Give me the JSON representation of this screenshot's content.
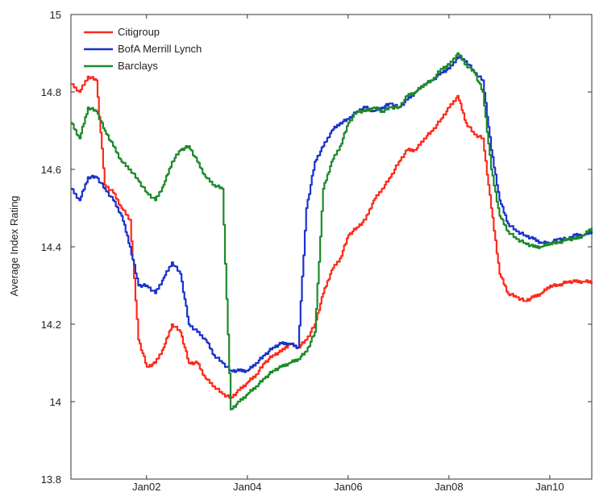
{
  "chart_data": {
    "type": "line",
    "title": "",
    "xlabel": "",
    "ylabel": "Average Index Rating",
    "xlim": [
      "2000-07",
      "2010-11"
    ],
    "ylim": [
      13.8,
      15
    ],
    "x_ticks": [
      {
        "label": "Jan02",
        "date": "2002-01"
      },
      {
        "label": "Jan04",
        "date": "2004-01"
      },
      {
        "label": "Jan06",
        "date": "2006-01"
      },
      {
        "label": "Jan08",
        "date": "2008-01"
      },
      {
        "label": "Jan10",
        "date": "2010-01"
      }
    ],
    "y_ticks": [
      "13.8",
      "14",
      "14.2",
      "14.4",
      "14.6",
      "14.8",
      "15"
    ],
    "grid": false,
    "legend_position": "top-left",
    "x": [
      "2000-07",
      "2000-09",
      "2000-11",
      "2001-01",
      "2001-03",
      "2001-05",
      "2001-07",
      "2001-09",
      "2001-11",
      "2002-01",
      "2002-03",
      "2002-05",
      "2002-07",
      "2002-09",
      "2002-11",
      "2003-01",
      "2003-03",
      "2003-05",
      "2003-07",
      "2003-09",
      "2003-11",
      "2004-01",
      "2004-03",
      "2004-05",
      "2004-07",
      "2004-09",
      "2004-11",
      "2005-01",
      "2005-03",
      "2005-05",
      "2005-07",
      "2005-09",
      "2005-11",
      "2006-01",
      "2006-03",
      "2006-05",
      "2006-07",
      "2006-09",
      "2006-11",
      "2007-01",
      "2007-03",
      "2007-05",
      "2007-07",
      "2007-09",
      "2007-11",
      "2008-01",
      "2008-03",
      "2008-05",
      "2008-07",
      "2008-09",
      "2008-11",
      "2009-01",
      "2009-03",
      "2009-05",
      "2009-07",
      "2009-09",
      "2009-11",
      "2010-01",
      "2010-03",
      "2010-05",
      "2010-07",
      "2010-09",
      "2010-11"
    ],
    "series": [
      {
        "name": "Citigroup",
        "color": "#ff2a1a",
        "values": [
          14.82,
          14.8,
          14.84,
          14.83,
          14.56,
          14.54,
          14.5,
          14.47,
          14.16,
          14.09,
          14.1,
          14.14,
          14.2,
          14.18,
          14.1,
          14.1,
          14.06,
          14.04,
          14.02,
          14.01,
          14.03,
          14.05,
          14.07,
          14.1,
          14.12,
          14.13,
          14.15,
          14.14,
          14.16,
          14.2,
          14.28,
          14.34,
          14.37,
          14.43,
          14.45,
          14.47,
          14.52,
          14.55,
          14.58,
          14.62,
          14.65,
          14.65,
          14.68,
          14.7,
          14.73,
          14.76,
          14.79,
          14.72,
          14.69,
          14.68,
          14.5,
          14.33,
          14.28,
          14.27,
          14.26,
          14.27,
          14.28,
          14.3,
          14.3,
          14.31,
          14.31,
          14.31,
          14.31
        ]
      },
      {
        "name": "BofA Merrill Lynch",
        "color": "#1a33cc",
        "values": [
          14.55,
          14.52,
          14.58,
          14.58,
          14.55,
          14.52,
          14.48,
          14.4,
          14.3,
          14.3,
          14.28,
          14.32,
          14.36,
          14.33,
          14.2,
          14.18,
          14.16,
          14.12,
          14.1,
          14.08,
          14.08,
          14.08,
          14.1,
          14.12,
          14.14,
          14.15,
          14.15,
          14.14,
          14.5,
          14.62,
          14.66,
          14.7,
          14.72,
          14.73,
          14.75,
          14.76,
          14.75,
          14.76,
          14.77,
          14.76,
          14.78,
          14.8,
          14.82,
          14.83,
          14.85,
          14.86,
          14.89,
          14.88,
          14.85,
          14.83,
          14.65,
          14.52,
          14.46,
          14.44,
          14.43,
          14.42,
          14.41,
          14.41,
          14.42,
          14.42,
          14.43,
          14.43,
          14.44
        ]
      },
      {
        "name": "Barclays",
        "color": "#1d8a2a",
        "values": [
          14.72,
          14.68,
          14.76,
          14.75,
          14.7,
          14.66,
          14.62,
          14.6,
          14.57,
          14.54,
          14.52,
          14.56,
          14.62,
          14.65,
          14.66,
          14.62,
          14.58,
          14.56,
          14.55,
          13.98,
          14.0,
          14.02,
          14.04,
          14.06,
          14.08,
          14.09,
          14.1,
          14.11,
          14.13,
          14.18,
          14.55,
          14.62,
          14.66,
          14.72,
          14.75,
          14.75,
          14.76,
          14.75,
          14.76,
          14.76,
          14.79,
          14.8,
          14.82,
          14.83,
          14.86,
          14.87,
          14.9,
          14.87,
          14.85,
          14.8,
          14.6,
          14.48,
          14.44,
          14.42,
          14.41,
          14.4,
          14.4,
          14.41,
          14.41,
          14.42,
          14.42,
          14.43,
          14.45
        ]
      }
    ]
  }
}
